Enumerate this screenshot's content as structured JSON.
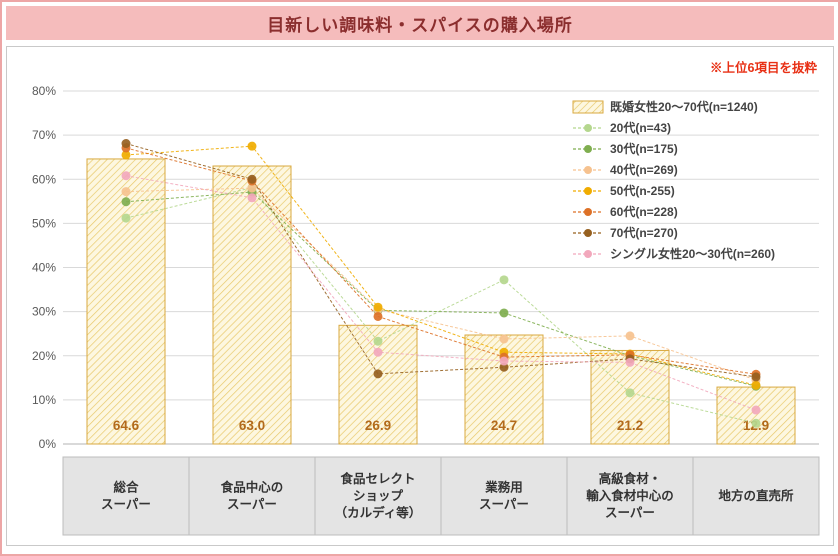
{
  "title": "目新しい調味料・スパイスの購入場所",
  "note": "※上位6項目を抜粋",
  "colors": {
    "page_border": "#eda6a6",
    "header_bg": "#f5bcbc",
    "title_text": "#8b2e2e",
    "note_text": "#e83015",
    "grid": "#d9d9d9",
    "axis_text": "#595959",
    "bar_fill": "#fdf7e0",
    "bar_hatch": "#e8c96a",
    "bar_border": "#d9a93f",
    "bar_label": "#b26a1b",
    "band_bg": "#e4e4e4",
    "band_line": "#bdbdbd",
    "band_text": "#333333",
    "legend_text": "#444444"
  },
  "chart_data": {
    "type": "bar",
    "title": "目新しい調味料・スパイスの購入場所",
    "categories": [
      "総合スーパー",
      "食品中心のスーパー",
      "食品セレクトショップ（カルディ等）",
      "業務用スーパー",
      "高級食材・輸入食材中心のスーパー",
      "地方の直売所"
    ],
    "category_lines": [
      [
        "総合",
        "スーパー"
      ],
      [
        "食品中心の",
        "スーパー"
      ],
      [
        "食品セレクト",
        "ショップ",
        "（カルディ等）"
      ],
      [
        "業務用",
        "スーパー"
      ],
      [
        "高級食材・",
        "輸入食材中心の",
        "スーパー"
      ],
      [
        "地方の直売所"
      ]
    ],
    "bar_series": {
      "name": "既婚女性20～70代(n=1240)",
      "values": [
        64.6,
        63.0,
        26.9,
        24.7,
        21.2,
        12.9
      ],
      "labels": [
        "64.6",
        "63.0",
        "26.9",
        "24.7",
        "21.2",
        "12.9"
      ]
    },
    "line_series": [
      {
        "name": "20代(n=43)",
        "color": "#b5d78e",
        "values": [
          51.2,
          58.1,
          23.3,
          37.2,
          11.6,
          4.7
        ]
      },
      {
        "name": "30代(n=175)",
        "color": "#7fae4f",
        "values": [
          54.9,
          57.1,
          30.3,
          29.7,
          20.0,
          13.1
        ]
      },
      {
        "name": "40代(n=269)",
        "color": "#f6c28f",
        "values": [
          57.2,
          58.0,
          30.5,
          23.8,
          24.5,
          14.5
        ]
      },
      {
        "name": "50代(n-255)",
        "color": "#f0ac00",
        "values": [
          65.5,
          67.5,
          31.0,
          20.8,
          20.4,
          13.3
        ]
      },
      {
        "name": "60代(n=228)",
        "color": "#dd7127",
        "values": [
          67.1,
          59.6,
          28.9,
          19.7,
          20.2,
          15.8
        ]
      },
      {
        "name": "70代(n=270)",
        "color": "#96601f",
        "values": [
          68.1,
          60.0,
          15.9,
          17.4,
          19.3,
          15.2
        ]
      },
      {
        "name": "シングル女性20～30代(n=260)",
        "color": "#f2a8bc",
        "values": [
          60.8,
          55.8,
          20.8,
          18.8,
          18.5,
          7.7
        ]
      }
    ],
    "ylim": [
      0,
      80
    ],
    "ytick_step": 10,
    "ytick_suffix": "%",
    "grid": true,
    "legend_position": "top-right"
  }
}
